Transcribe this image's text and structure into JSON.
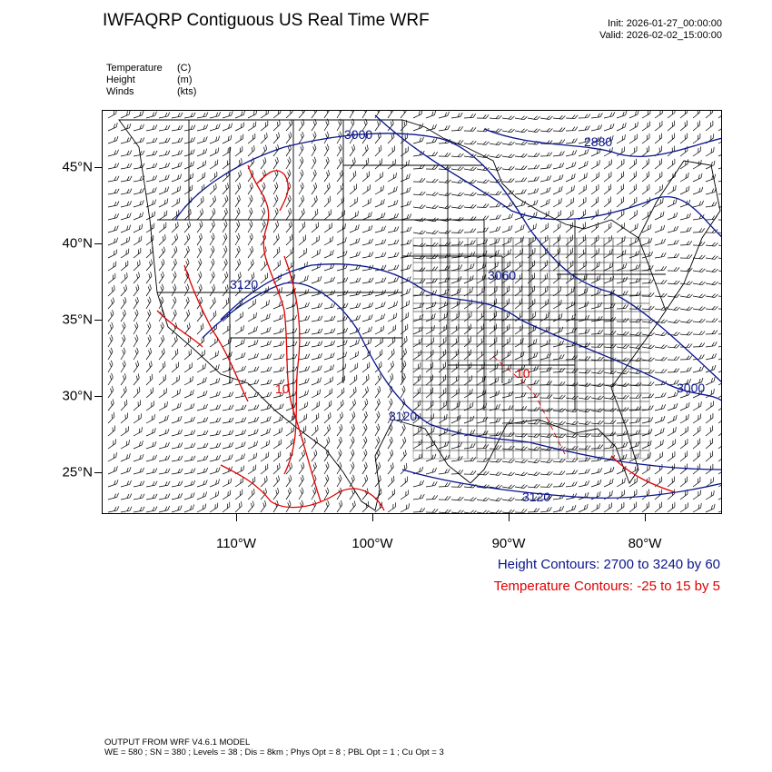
{
  "title": "IWFAQRP Contiguous US Real Time WRF",
  "init_time": "Init: 2026-01-27_00:00:00",
  "valid_time": "Valid: 2026-02-02_15:00:00",
  "legend": [
    {
      "name": "Temperature",
      "unit": "(C)"
    },
    {
      "name": "Height",
      "unit": "(m)"
    },
    {
      "name": "Winds",
      "unit": "(kts)"
    }
  ],
  "lat_ticks": [
    "45°N",
    "40°N",
    "35°N",
    "30°N",
    "25°N"
  ],
  "lon_ticks": [
    "110°W",
    "100°W",
    "90°W",
    "80°W"
  ],
  "height_contour_labels": [
    "3000",
    "2880",
    "3120",
    "3060",
    "3000",
    "3120",
    "3120"
  ],
  "temp_contour_labels": [
    "10",
    "10"
  ],
  "height_contours_note": "Height Contours: 2700 to 3240 by 60",
  "temp_contours_note": "Temperature Contours: -25 to 15 by 5",
  "footer_line1": "OUTPUT FROM WRF V4.6.1 MODEL",
  "footer_line2": "WE = 580 ; SN = 380 ; Levels = 38 ; Dis = 8km ; Phys Opt = 8 ; PBL Opt = 1 ; Cu Opt = 3",
  "colors": {
    "height_contour": "#0a148c",
    "temperature_contour": "#e00000",
    "wind_barb": "#000000"
  }
}
